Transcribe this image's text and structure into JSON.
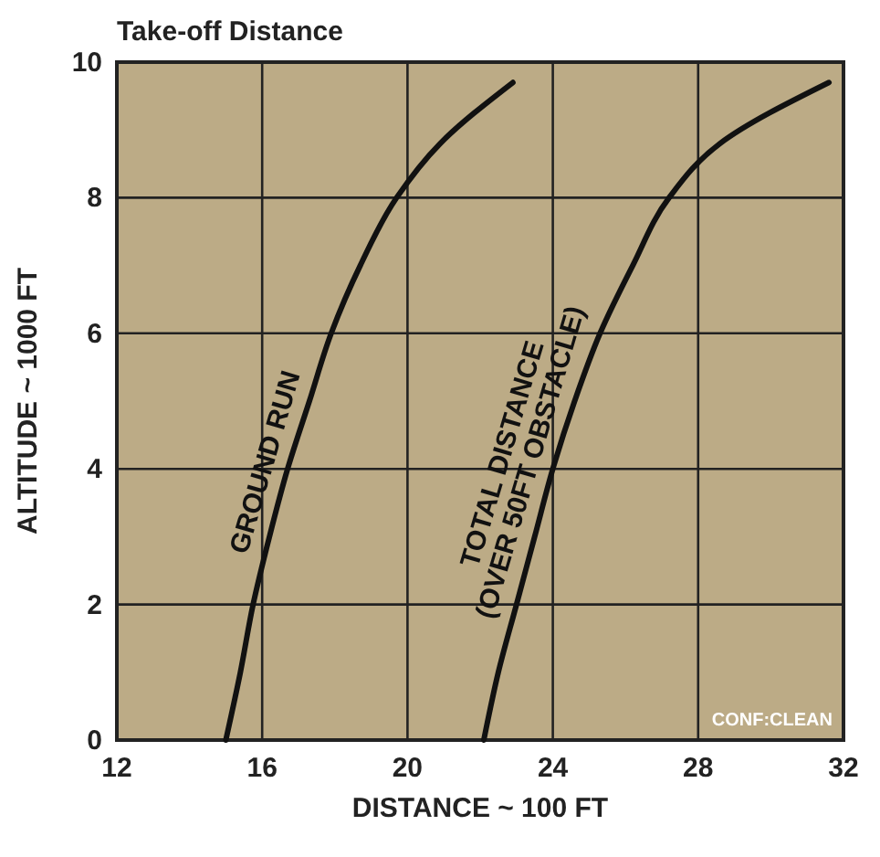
{
  "chart_data": {
    "type": "line",
    "title": "Take-off Distance",
    "xlabel": "DISTANCE ~ 100 FT",
    "ylabel": "ALTITUDE ~ 1000 FT",
    "xlim": [
      12,
      32
    ],
    "ylim": [
      0,
      10
    ],
    "xticks": [
      12,
      16,
      20,
      24,
      28,
      32
    ],
    "yticks": [
      0,
      2,
      4,
      6,
      8,
      10
    ],
    "grid": true,
    "marker": "none",
    "line_style": "solid",
    "series": [
      {
        "name": "GROUND RUN",
        "color": "#111111",
        "x": [
          15.0,
          15.4,
          15.75,
          16.2,
          16.7,
          17.3,
          17.9,
          18.7,
          19.7,
          20.9,
          22.9
        ],
        "values": [
          0,
          1,
          2,
          3,
          4,
          5,
          6,
          7,
          8,
          8.8,
          9.7
        ]
      },
      {
        "name": "TOTAL DISTANCE (OVER 50FT OBSTACLE)",
        "color": "#111111",
        "x": [
          22.1,
          22.5,
          23.0,
          23.5,
          24.0,
          24.6,
          25.3,
          26.2,
          27.2,
          28.6,
          31.6
        ],
        "values": [
          0,
          1,
          2,
          3,
          4,
          5,
          6,
          7,
          8,
          8.8,
          9.7
        ]
      }
    ],
    "annotations": [
      "CONF:CLEAN"
    ]
  }
}
